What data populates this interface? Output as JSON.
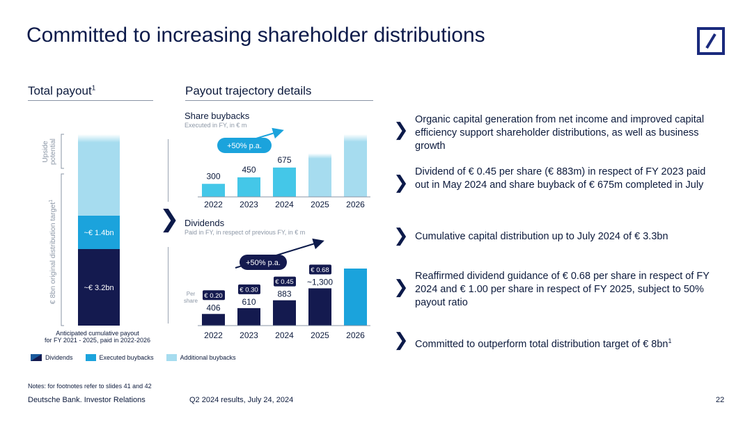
{
  "title": "Committed to increasing shareholder distributions",
  "colors": {
    "dividends": "#141a4f",
    "executed_buybacks": "#1ba3dc",
    "additional_buybacks": "#a6dcef",
    "bright": "#44c7e8",
    "navy": "#0c1a4a"
  },
  "left_section": {
    "title": "Total payout",
    "sup": "1"
  },
  "right_section": {
    "title": "Payout trajectory details"
  },
  "chart_data": [
    {
      "type": "bar",
      "title": "Total payout",
      "stacked": true,
      "categories": [
        "Anticipated cumulative payout for FY 2021 - 2025, paid in 2022-2026"
      ],
      "category_label_lines": [
        "Anticipated cumulative payout",
        "for FY 2021 - 2025, paid in 2022-2026"
      ],
      "series": [
        {
          "name": "Dividends",
          "values": [
            3.2
          ],
          "label": "~€ 3.2bn"
        },
        {
          "name": "Executed buybacks",
          "values": [
            1.4
          ],
          "label": "~€ 1.4bn"
        },
        {
          "name": "Additional buybacks",
          "values": [
            3.4
          ],
          "label": ""
        }
      ],
      "unit": "€ bn",
      "bracket_labels": {
        "upside": "Upside potential",
        "upside_lines": [
          "Upside",
          "potential"
        ],
        "target": "€ 8bn original distribution target",
        "target_sup": "1"
      }
    },
    {
      "type": "bar",
      "title": "Share buybacks",
      "subtitle": "Executed in FY, in € m",
      "categories": [
        "2022",
        "2023",
        "2024",
        "2025",
        "2026"
      ],
      "values": [
        300,
        450,
        675,
        null,
        null
      ],
      "value_labels": [
        "300",
        "450",
        "675",
        "",
        ""
      ],
      "projected_heights": [
        null,
        null,
        null,
        1000,
        1440
      ],
      "growth_label": "+50% p.a."
    },
    {
      "type": "bar",
      "title": "Dividends",
      "subtitle": "Paid in FY, in respect of previous FY, in € m",
      "categories": [
        "2022",
        "2023",
        "2024",
        "2025",
        "2026"
      ],
      "values": [
        406,
        610,
        883,
        1300,
        null
      ],
      "value_labels": [
        "406",
        "610",
        "883",
        "~1,300",
        ""
      ],
      "projected_heights": [
        null,
        null,
        null,
        null,
        1990
      ],
      "per_share_caption": "Per share",
      "per_share": [
        "€ 0.20",
        "€ 0.30",
        "€ 0.45",
        "€ 0.68",
        ""
      ],
      "growth_label": "+50% p.a."
    }
  ],
  "legend": [
    {
      "label": "Dividends",
      "color_key": "dividends"
    },
    {
      "label": "Executed buybacks",
      "color_key": "executed_buybacks"
    },
    {
      "label": "Additional buybacks",
      "color_key": "additional_buybacks"
    }
  ],
  "bullets": [
    "Organic capital generation from net income and improved capital efficiency support shareholder distributions, as well as business growth",
    "Dividend of € 0.45 per share (€ 883m) in respect of FY 2023 paid out in May 2024 and share buyback of € 675m completed in July",
    "Cumulative capital distribution up to July 2024 of € 3.3bn",
    "Reaffirmed dividend guidance of € 0.68 per share in respect of FY 2024 and € 1.00 per share in respect of FY 2025, subject to 50% payout ratio",
    "Committed to outperform total distribution target of € 8bn"
  ],
  "bullet_last_sup": "1",
  "chevron_glyph": "❯",
  "notes": "Notes: for footnotes refer to slides 41 and 42",
  "footer": {
    "left": "Deutsche Bank. Investor Relations",
    "center": "Q2 2024 results, July 24, 2024",
    "page": "22"
  }
}
